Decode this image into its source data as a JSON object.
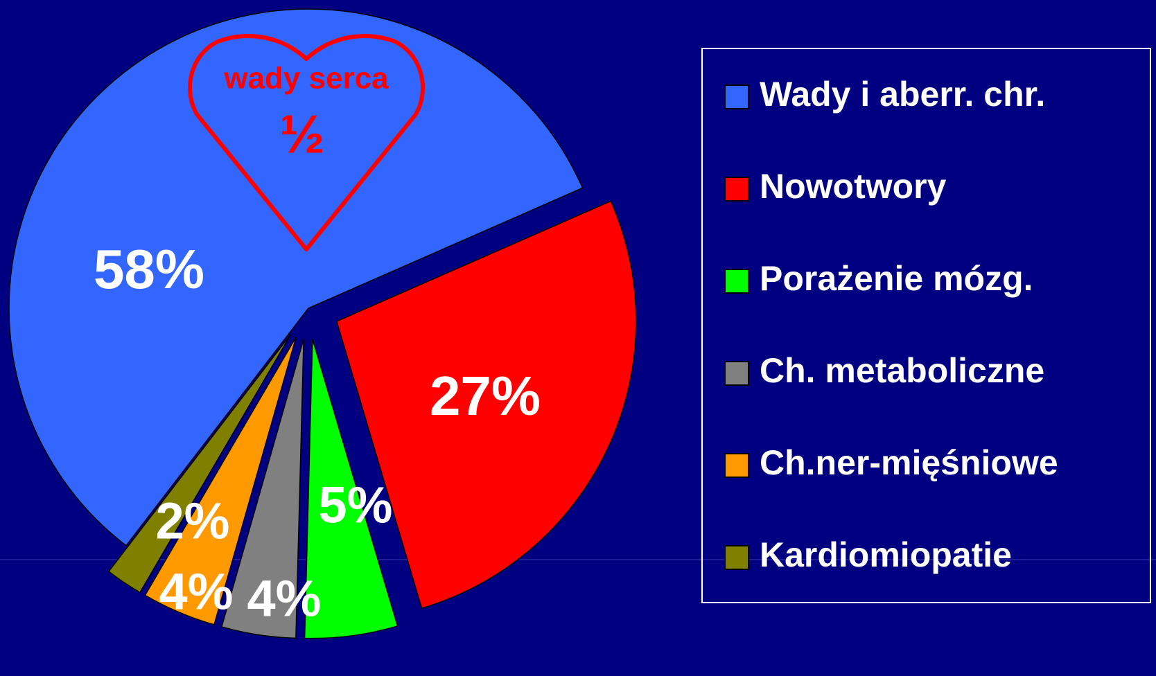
{
  "chart_data": {
    "type": "pie",
    "categories": [
      "Wady i aberr. chr.",
      "Nowotwory",
      "Porażenie mózg.",
      "Ch. metaboliczne",
      "Ch.ner-mięśniowe",
      "Kardiomiopatie"
    ],
    "values": [
      58,
      27,
      5,
      4,
      4,
      2
    ],
    "value_labels": [
      "58%",
      "27%",
      "5%",
      "4%",
      "4%",
      "2%"
    ],
    "colors": [
      "#3366ff",
      "#ff0000",
      "#00ff00",
      "#808080",
      "#ff9900",
      "#808000"
    ],
    "legend": "right",
    "annotations": [
      "wady serca",
      "½"
    ]
  }
}
